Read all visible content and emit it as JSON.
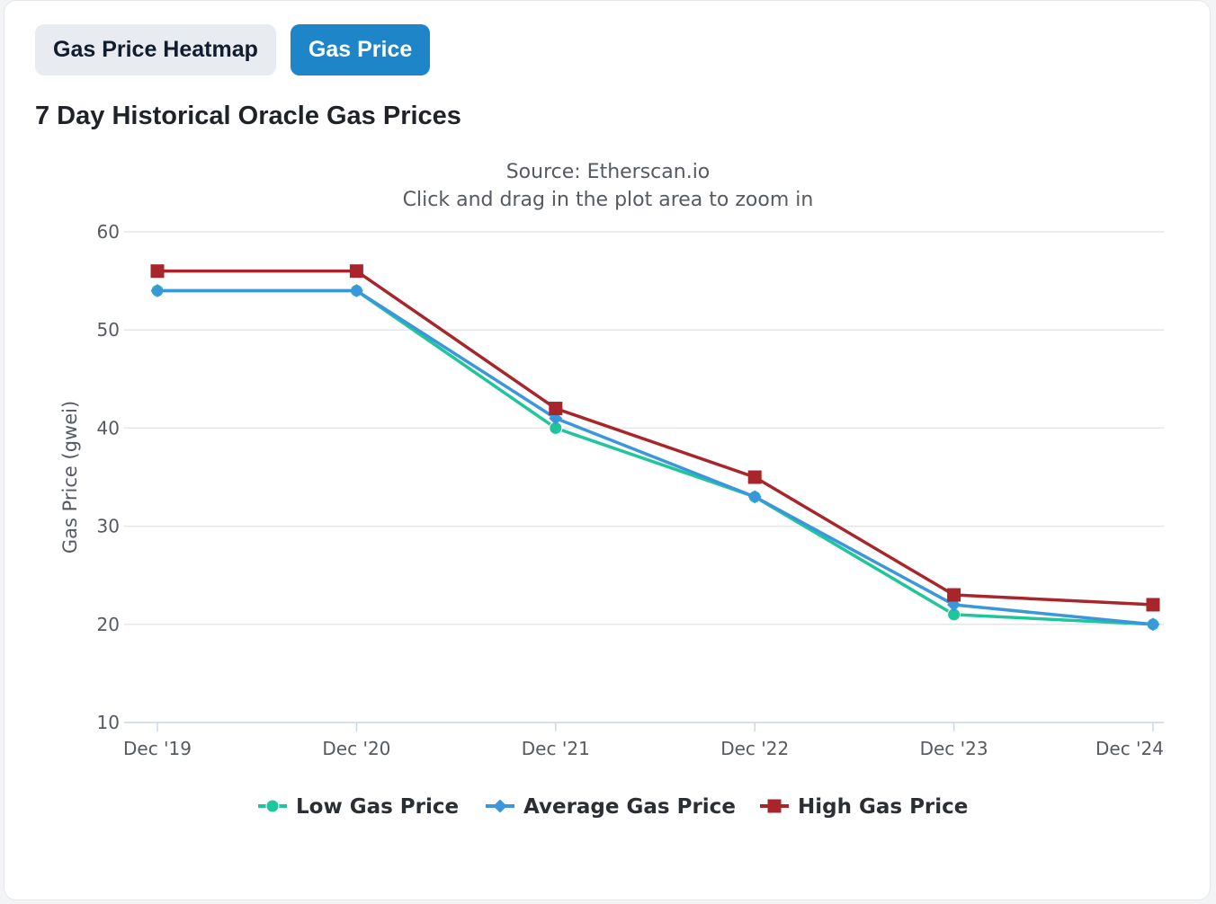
{
  "tabs": [
    {
      "label": "Gas Price Heatmap",
      "active": false
    },
    {
      "label": "Gas Price",
      "active": true
    }
  ],
  "section_title": "7 Day Historical Oracle Gas Prices",
  "chart_data": {
    "type": "line",
    "title": "",
    "subtitle": [
      "Source: Etherscan.io",
      "Click and drag in the plot area to zoom in"
    ],
    "xlabel": "",
    "ylabel": "Gas Price (gwei)",
    "categories": [
      "Dec '19",
      "Dec '20",
      "Dec '21",
      "Dec '22",
      "Dec '23",
      "Dec '24"
    ],
    "y_ticks": [
      10,
      20,
      30,
      40,
      50,
      60
    ],
    "ylim": [
      10,
      60
    ],
    "grid": true,
    "legend_position": "bottom",
    "series": [
      {
        "name": "Low Gas Price",
        "color": "#1fc69b",
        "marker": "circle",
        "values": [
          54,
          54,
          40,
          33,
          21,
          20
        ]
      },
      {
        "name": "Average Gas Price",
        "color": "#3b97db",
        "marker": "diamond",
        "values": [
          54,
          54,
          41,
          33,
          22,
          20
        ]
      },
      {
        "name": "High Gas Price",
        "color": "#a8262b",
        "marker": "square",
        "values": [
          56,
          56,
          42,
          35,
          23,
          22
        ]
      }
    ]
  }
}
